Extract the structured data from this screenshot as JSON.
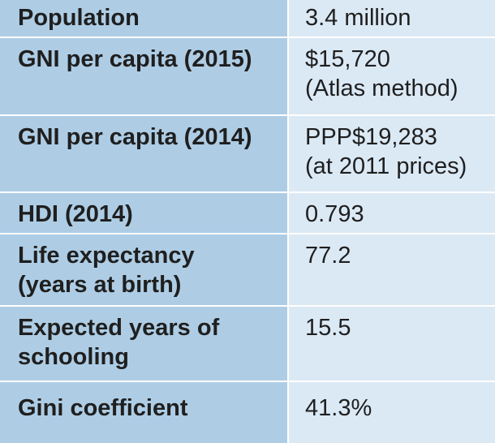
{
  "table": {
    "rows": [
      {
        "label": "Population",
        "value": "3.4 million"
      },
      {
        "label": "GNI per capita (2015)",
        "value": "$15,720\n(Atlas method)"
      },
      {
        "label": "GNI per capita (2014)",
        "value": "PPP$19,283\n(at 2011 prices)"
      },
      {
        "label": "HDI (2014)",
        "value": "0.793"
      },
      {
        "label": "Life expectancy\n(years at birth)",
        "value": "77.2"
      },
      {
        "label": "Expected years of\nschooling",
        "value": "15.5"
      },
      {
        "label": "Gini coefficient",
        "value": "41.3%"
      }
    ]
  },
  "colors": {
    "label_background": "#aecde5",
    "value_background": "#dbe9f5"
  }
}
